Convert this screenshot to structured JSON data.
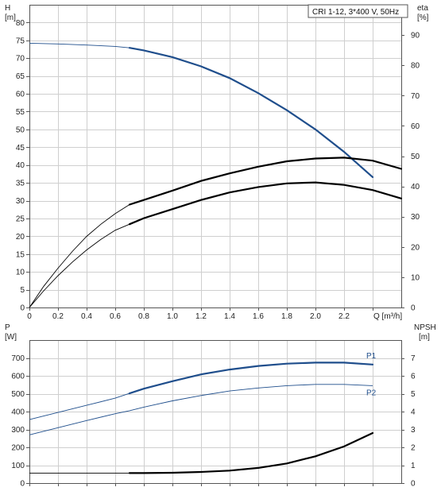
{
  "chart_data": [
    {
      "type": "line",
      "title": "CRI 1-12, 3*400 V, 50Hz",
      "xlabel": "Q [m³/h]",
      "xlim": [
        0,
        2.6
      ],
      "x_ticks": [
        "0",
        "0.2",
        "0.4",
        "0.6",
        "0.8",
        "1.0",
        "1.2",
        "1.4",
        "1.6",
        "1.8",
        "2.0",
        "2.2"
      ],
      "x_tick_values": [
        0,
        0.2,
        0.4,
        0.6,
        0.8,
        1.0,
        1.2,
        1.4,
        1.6,
        1.8,
        2.0,
        2.2
      ],
      "y_axis_left": {
        "label_line1": "H",
        "label_line2": "[m]",
        "range": [
          0,
          85
        ],
        "ticks": [
          "0",
          "5",
          "10",
          "15",
          "20",
          "25",
          "30",
          "35",
          "40",
          "45",
          "50",
          "55",
          "60",
          "65",
          "70",
          "75",
          "80"
        ],
        "tick_values": [
          0,
          5,
          10,
          15,
          20,
          25,
          30,
          35,
          40,
          45,
          50,
          55,
          60,
          65,
          70,
          75,
          80
        ]
      },
      "y_axis_right": {
        "label_line1": "eta",
        "label_line2": "[%]",
        "range": [
          0,
          100
        ],
        "ticks": [
          "0",
          "10",
          "20",
          "30",
          "40",
          "50",
          "60",
          "70",
          "80",
          "90"
        ],
        "tick_values": [
          0,
          10,
          20,
          30,
          40,
          50,
          60,
          70,
          80,
          90
        ]
      },
      "grid": true,
      "series": [
        {
          "axis": "left",
          "color": "#1f4e8c",
          "thin": [
            [
              0,
              74.2
            ],
            [
              0.2,
              74.0
            ],
            [
              0.4,
              73.7
            ],
            [
              0.6,
              73.3
            ],
            [
              0.7,
              72.9
            ]
          ],
          "bold": [
            [
              0.7,
              72.9
            ],
            [
              0.8,
              72.2
            ],
            [
              1.0,
              70.3
            ],
            [
              1.2,
              67.7
            ],
            [
              1.4,
              64.4
            ],
            [
              1.6,
              60.2
            ],
            [
              1.8,
              55.4
            ],
            [
              2.0,
              50.0
            ],
            [
              2.2,
              43.7
            ],
            [
              2.4,
              36.6
            ]
          ]
        },
        {
          "axis": "right",
          "color": "#000000",
          "thin": [
            [
              0,
              0
            ],
            [
              0.1,
              7
            ],
            [
              0.2,
              13
            ],
            [
              0.3,
              18.5
            ],
            [
              0.4,
              23.5
            ],
            [
              0.5,
              27.5
            ],
            [
              0.6,
              31
            ],
            [
              0.7,
              34
            ]
          ],
          "bold": [
            [
              0.7,
              34
            ],
            [
              0.8,
              35.5
            ],
            [
              1.0,
              38.6
            ],
            [
              1.2,
              41.8
            ],
            [
              1.4,
              44.3
            ],
            [
              1.6,
              46.5
            ],
            [
              1.8,
              48.3
            ],
            [
              2.0,
              49.2
            ],
            [
              2.2,
              49.5
            ],
            [
              2.4,
              48.5
            ],
            [
              2.6,
              45.8
            ]
          ]
        },
        {
          "axis": "right",
          "color": "#000000",
          "thin": [
            [
              0,
              0
            ],
            [
              0.1,
              5.5
            ],
            [
              0.2,
              10.5
            ],
            [
              0.3,
              15
            ],
            [
              0.4,
              19
            ],
            [
              0.5,
              22.5
            ],
            [
              0.6,
              25.5
            ],
            [
              0.7,
              27.5
            ]
          ],
          "bold": [
            [
              0.7,
              27.5
            ],
            [
              0.8,
              29.5
            ],
            [
              1.0,
              32.5
            ],
            [
              1.2,
              35.5
            ],
            [
              1.4,
              38
            ],
            [
              1.6,
              39.8
            ],
            [
              1.8,
              41
            ],
            [
              2.0,
              41.3
            ],
            [
              2.2,
              40.5
            ],
            [
              2.4,
              38.8
            ],
            [
              2.6,
              36
            ]
          ]
        }
      ]
    },
    {
      "type": "line",
      "xlim": [
        0,
        2.6
      ],
      "y_axis_left": {
        "label_line1": "P",
        "label_line2": "[W]",
        "range": [
          0,
          800
        ],
        "ticks": [
          "0",
          "100",
          "200",
          "300",
          "400",
          "500",
          "600",
          "700"
        ],
        "tick_values": [
          0,
          100,
          200,
          300,
          400,
          500,
          600,
          700
        ]
      },
      "y_axis_right": {
        "label_line1": "NPSH",
        "label_line2": "[m]",
        "range": [
          0,
          8
        ],
        "ticks": [
          "0",
          "1",
          "2",
          "3",
          "4",
          "5",
          "6",
          "7"
        ],
        "tick_values": [
          0,
          1,
          2,
          3,
          4,
          5,
          6,
          7
        ]
      },
      "grid": true,
      "series": [
        {
          "name": "P1",
          "axis": "left",
          "color": "#1f4e8c",
          "thin": [
            [
              0,
              355
            ],
            [
              0.2,
              395
            ],
            [
              0.4,
              435
            ],
            [
              0.6,
              475
            ],
            [
              0.7,
              502
            ]
          ],
          "bold": [
            [
              0.7,
              502
            ],
            [
              0.8,
              528
            ],
            [
              1.0,
              570
            ],
            [
              1.2,
              608
            ],
            [
              1.4,
              635
            ],
            [
              1.6,
              655
            ],
            [
              1.8,
              668
            ],
            [
              2.0,
              674
            ],
            [
              2.2,
              674
            ],
            [
              2.4,
              663
            ]
          ]
        },
        {
          "name": "P2",
          "axis": "left",
          "color": "#1f4e8c",
          "thin": [
            [
              0,
              270
            ],
            [
              0.2,
              310
            ],
            [
              0.4,
              350
            ],
            [
              0.6,
              388
            ],
            [
              0.7,
              405
            ],
            [
              0.8,
              425
            ],
            [
              1.0,
              460
            ],
            [
              1.2,
              490
            ],
            [
              1.4,
              515
            ],
            [
              1.6,
              532
            ],
            [
              1.8,
              545
            ],
            [
              2.0,
              552
            ],
            [
              2.2,
              552
            ],
            [
              2.4,
              545
            ]
          ],
          "bold": []
        },
        {
          "axis": "right",
          "color": "#000000",
          "thin": [
            [
              0,
              0.55
            ],
            [
              0.2,
              0.55
            ],
            [
              0.4,
              0.55
            ],
            [
              0.6,
              0.55
            ],
            [
              0.7,
              0.56
            ]
          ],
          "bold": [
            [
              0.7,
              0.56
            ],
            [
              0.8,
              0.56
            ],
            [
              1.0,
              0.58
            ],
            [
              1.2,
              0.62
            ],
            [
              1.4,
              0.7
            ],
            [
              1.6,
              0.85
            ],
            [
              1.8,
              1.1
            ],
            [
              2.0,
              1.5
            ],
            [
              2.2,
              2.05
            ],
            [
              2.4,
              2.8
            ]
          ]
        }
      ]
    }
  ]
}
